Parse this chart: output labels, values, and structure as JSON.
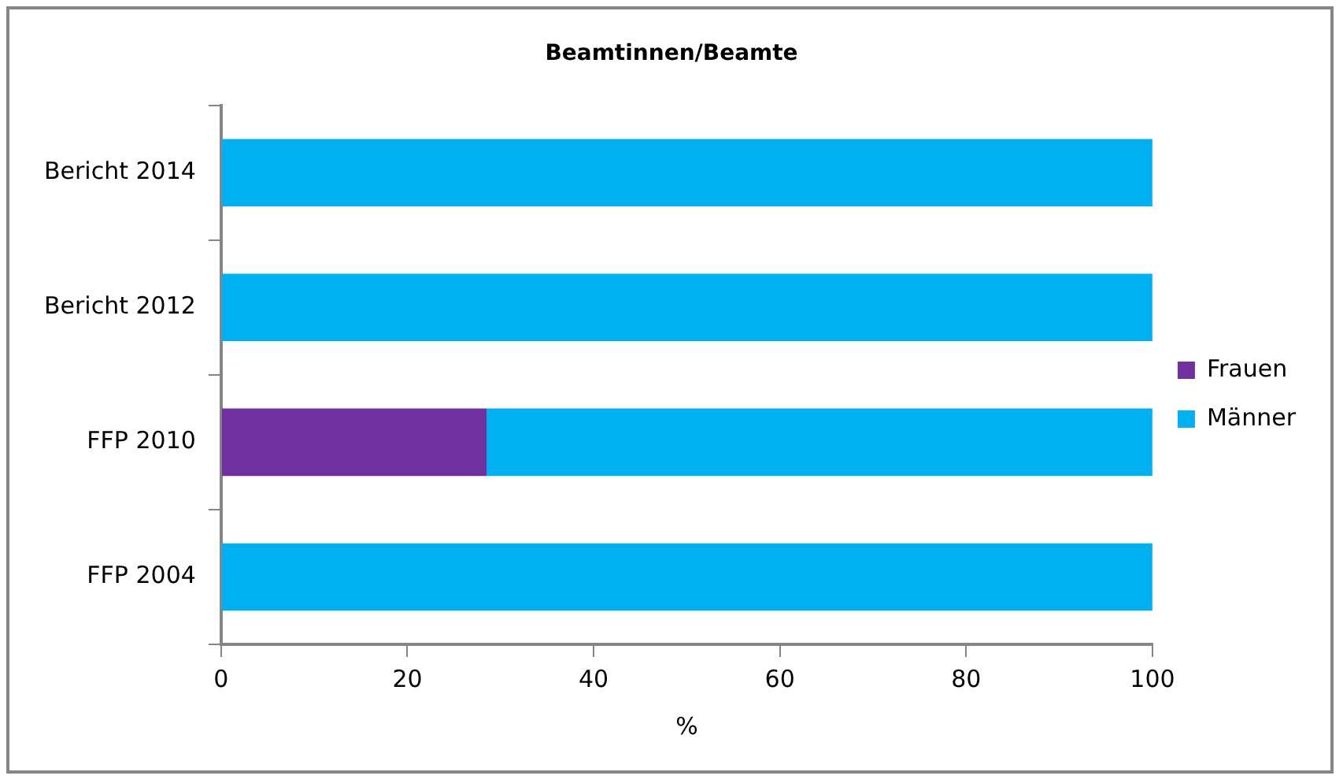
{
  "chart_data": {
    "type": "bar",
    "orientation": "horizontal",
    "stacked": true,
    "title": "Beamtinnen/Beamte",
    "xlabel": "%",
    "categories": [
      "Bericht 2014",
      "Bericht 2012",
      "FFP 2010",
      "FFP 2004"
    ],
    "series": [
      {
        "name": "Frauen",
        "color": "#7030a0",
        "values": [
          0,
          0,
          28.5,
          0
        ]
      },
      {
        "name": "Männer",
        "color": "#00b0f0",
        "values": [
          100,
          100,
          71.5,
          100
        ]
      }
    ],
    "xlim": [
      0,
      100
    ],
    "xticks": [
      0,
      20,
      40,
      60,
      80,
      100
    ],
    "grid": false,
    "legend": "right"
  }
}
